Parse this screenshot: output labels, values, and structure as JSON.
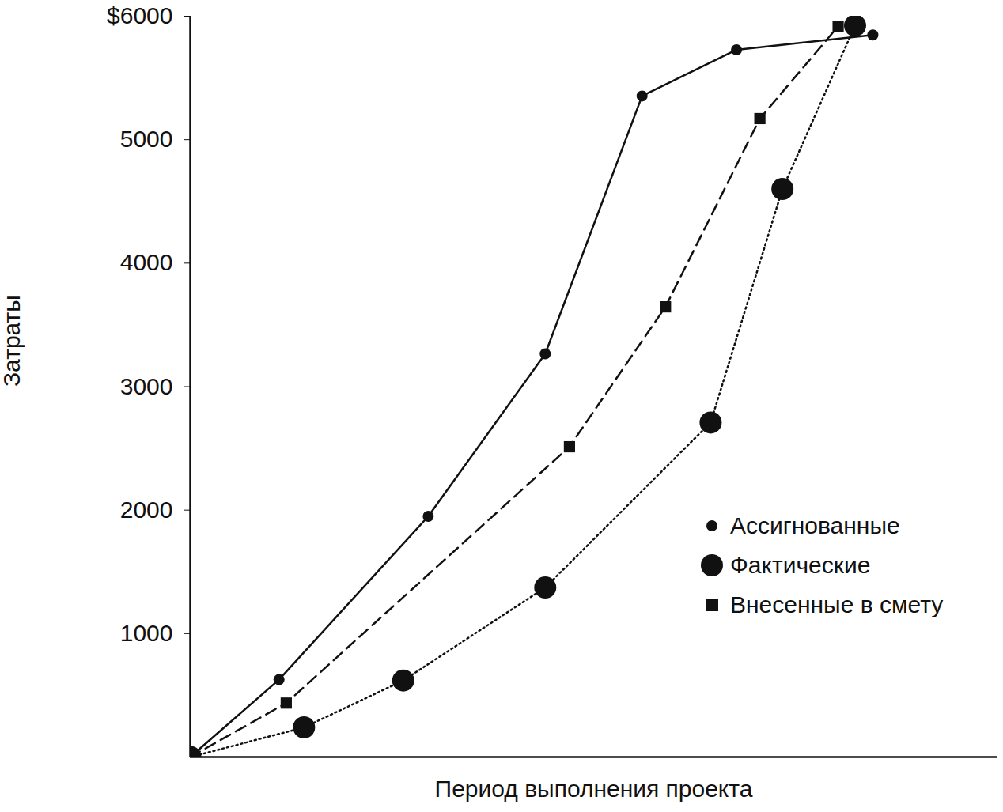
{
  "chart_data": {
    "type": "line",
    "x_label": "Период выполнения проекта",
    "y_label": "Затраты",
    "xlim": [
      0,
      100
    ],
    "ylim": [
      0,
      6000
    ],
    "yticks": [
      1000,
      2000,
      3000,
      4000,
      5000,
      {
        "value": 6000,
        "label": "$6000"
      }
    ],
    "tick_labels": "y",
    "grid": false,
    "legend": "lower right",
    "series": [
      {
        "name": "Ассигнованные",
        "color": "#111111",
        "marker": "dot",
        "line_style": "solid",
        "x": [
          0,
          11,
          29.5,
          44,
          56,
          67.7,
          84.6
        ],
        "values": [
          0,
          627,
          1950,
          3266,
          5354,
          5728,
          5848
        ]
      },
      {
        "name": "Фактические",
        "color": "#111111",
        "marker": "circle",
        "line_style": "dotted",
        "x": [
          0,
          14.1,
          26.4,
          44,
          64.5,
          73.4,
          82.4
        ],
        "values": [
          0,
          240,
          620,
          1373,
          2709,
          4601,
          5924
        ]
      },
      {
        "name": "Внесенные в смету",
        "color": "#111111",
        "marker": "square",
        "line_style": "dashed",
        "x": [
          0,
          11.9,
          47,
          58.9,
          70.6,
          80.3
        ],
        "values": [
          0,
          437,
          2513,
          3646,
          5171,
          5918
        ]
      }
    ]
  }
}
